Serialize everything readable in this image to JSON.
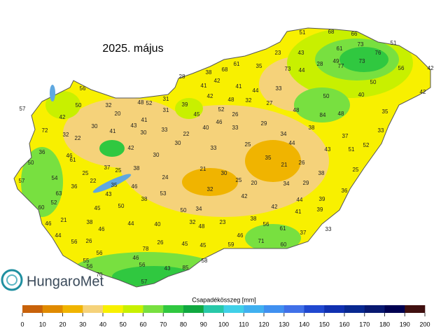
{
  "title": "2025. május",
  "logo": "HungaroMet",
  "colorbar": {
    "label": "Csapadékösszeg [mm]",
    "ticks": [
      0,
      10,
      20,
      30,
      40,
      50,
      60,
      70,
      80,
      90,
      100,
      110,
      120,
      130,
      140,
      150,
      160,
      170,
      180,
      190,
      200
    ],
    "colors": [
      "#c8620a",
      "#e08a00",
      "#f0b400",
      "#f5d27a",
      "#f8f000",
      "#c8f000",
      "#78e040",
      "#30c840",
      "#10a840",
      "#28c8a8",
      "#40d0e8",
      "#40b0f0",
      "#4090f0",
      "#4070e8",
      "#2048d0",
      "#1030b0",
      "#082890",
      "#081870",
      "#000050",
      "#401010"
    ]
  },
  "stations": {
    "values": [
      51,
      68,
      66,
      51,
      61,
      73,
      76,
      77,
      73,
      56,
      42,
      23,
      43,
      28,
      49,
      73,
      44,
      61,
      35,
      28,
      68,
      38,
      42,
      41,
      41,
      44,
      33,
      50,
      50,
      40,
      42,
      56,
      57,
      50,
      32,
      48,
      52,
      31,
      39,
      42,
      48,
      32,
      27,
      48,
      84,
      48,
      35,
      42,
      20,
      41,
      31,
      45,
      52,
      26,
      40,
      46,
      29,
      38,
      72,
      32,
      30,
      43,
      30,
      33,
      22,
      33,
      34,
      37,
      33,
      52,
      44,
      43,
      51,
      22,
      41,
      42,
      30,
      30,
      33,
      25,
      35,
      36,
      46,
      61,
      37,
      25,
      38,
      21,
      26,
      50,
      25,
      21,
      30,
      25,
      20,
      38,
      25,
      54,
      57,
      22,
      35,
      36,
      46,
      24,
      34,
      29,
      32,
      36,
      63,
      53,
      43,
      42,
      42,
      39,
      60,
      52,
      45,
      50,
      38,
      50,
      34,
      44,
      41,
      39,
      46,
      21,
      38,
      40,
      32,
      38,
      56,
      44,
      46,
      48,
      23,
      61,
      37,
      33,
      56,
      44,
      26,
      26,
      46,
      71,
      60,
      56,
      78,
      45,
      45,
      59,
      46,
      56,
      56,
      70,
      43,
      85,
      58,
      57,
      55
    ]
  }
}
